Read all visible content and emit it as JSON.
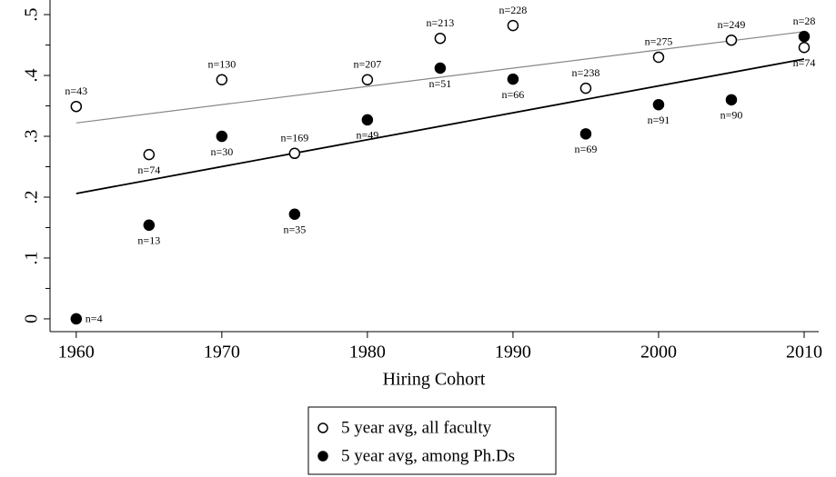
{
  "chart_data": {
    "type": "scatter",
    "x_label": "Hiring Cohort",
    "x": [
      1960,
      1965,
      1970,
      1975,
      1980,
      1985,
      1990,
      1995,
      2000,
      2005,
      2010
    ],
    "series": [
      {
        "name": "5 year avg, all faculty",
        "color": "#000000",
        "marker": "hollow",
        "values": [
          0.349,
          0.27,
          0.393,
          0.272,
          0.393,
          0.461,
          0.482,
          0.379,
          0.43,
          0.458,
          0.446
        ],
        "labels": [
          "n=43",
          "n=74",
          "n=130",
          "n=169",
          "n=207",
          "n=213",
          "n=228",
          "n=238",
          "n=275",
          "n=249",
          "n=74"
        ]
      },
      {
        "name": "5 year avg, among Ph.Ds",
        "color": "#000000",
        "marker": "filled",
        "values": [
          0.0,
          0.154,
          0.3,
          0.172,
          0.327,
          0.412,
          0.394,
          0.304,
          0.352,
          0.36,
          0.464
        ],
        "labels": [
          "n=4",
          "n=13",
          "n=30",
          "n=35",
          "n=49",
          "n=51",
          "n=66",
          "n=69",
          "n=91",
          "n=90",
          "n=28"
        ]
      }
    ],
    "fits": [
      {
        "color": "#888888",
        "x": [
          1960,
          2010
        ],
        "values": [
          0.322,
          0.472
        ]
      },
      {
        "color": "#000000",
        "x": [
          1960,
          2010
        ],
        "values": [
          0.206,
          0.427
        ]
      }
    ],
    "xlim": [
      1958.2,
      2011
    ],
    "ylim": [
      -0.021,
      0.524
    ],
    "xticks": [
      1960,
      1970,
      1980,
      1990,
      2000,
      2010
    ],
    "yticks": [
      0,
      {
        "value": 0.1,
        "label": ".1"
      },
      {
        "value": 0.2,
        "label": ".2"
      },
      {
        "value": 0.3,
        "label": ".3"
      },
      {
        "value": 0.4,
        "label": ".4"
      },
      {
        "value": 0.5,
        "label": ".5"
      }
    ],
    "yminor": [
      0.05,
      0.15,
      0.25,
      0.35,
      0.45
    ],
    "legend": "bottom"
  }
}
